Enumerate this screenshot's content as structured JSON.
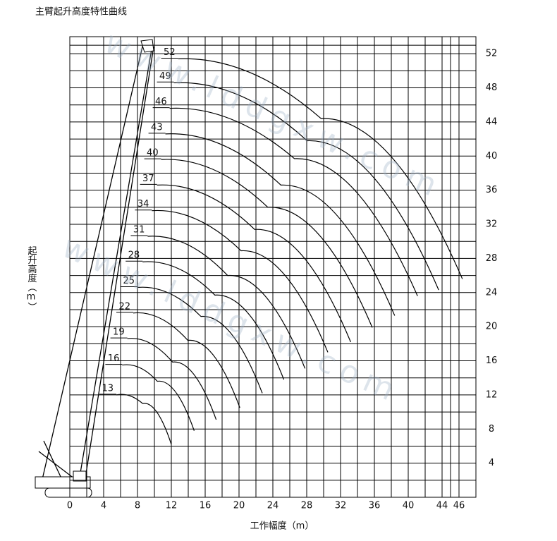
{
  "chart_data": {
    "type": "line",
    "title": "主臂起升高度特性曲线",
    "x_label": "工作幅度（m）",
    "y_label": "起升高度（m）",
    "watermark": "www.lddgxw.com",
    "xlim": [
      0,
      48
    ],
    "ylim": [
      0,
      54
    ],
    "xticks": [
      0,
      4,
      8,
      12,
      16,
      20,
      24,
      28,
      32,
      36,
      40,
      44,
      46
    ],
    "yticks": [
      4,
      8,
      12,
      16,
      20,
      24,
      28,
      32,
      36,
      40,
      44,
      48,
      52
    ],
    "grid": true,
    "series": [
      {
        "name": "13",
        "color": "#000000",
        "x": [
          5.5,
          8.6,
          12.0
        ],
        "values": [
          12.0,
          11.0,
          6.2
        ]
      },
      {
        "name": "16",
        "color": "#000000",
        "x": [
          6.2,
          10.35,
          14.7
        ],
        "values": [
          15.5,
          13.6,
          7.8
        ]
      },
      {
        "name": "19",
        "color": "#000000",
        "x": [
          6.8,
          12.15,
          17.3
        ],
        "values": [
          18.6,
          15.85,
          9.1
        ]
      },
      {
        "name": "22",
        "color": "#000000",
        "x": [
          7.5,
          13.95,
          20.1
        ],
        "values": [
          21.6,
          18.4,
          10.5
        ]
      },
      {
        "name": "25",
        "color": "#000000",
        "x": [
          8.0,
          15.5,
          22.75
        ],
        "values": [
          24.6,
          21.2,
          12.2
        ]
      },
      {
        "name": "28",
        "color": "#000000",
        "x": [
          8.6,
          17.15,
          25.3
        ],
        "values": [
          27.6,
          23.7,
          13.8
        ]
      },
      {
        "name": "31",
        "color": "#000000",
        "x": [
          9.2,
          18.65,
          27.8
        ],
        "values": [
          30.6,
          26.0,
          15.1
        ]
      },
      {
        "name": "34",
        "color": "#000000",
        "x": [
          9.7,
          20.25,
          30.5
        ],
        "values": [
          33.6,
          28.9,
          17.0
        ]
      },
      {
        "name": "37",
        "color": "#000000",
        "x": [
          10.3,
          21.85,
          33.2
        ],
        "values": [
          36.6,
          31.4,
          18.2
        ]
      },
      {
        "name": "40",
        "color": "#000000",
        "x": [
          10.8,
          23.4,
          35.75
        ],
        "values": [
          39.6,
          34.0,
          19.9
        ]
      },
      {
        "name": "43",
        "color": "#000000",
        "x": [
          11.3,
          24.95,
          38.4
        ],
        "values": [
          42.6,
          36.6,
          21.3
        ]
      },
      {
        "name": "46",
        "color": "#000000",
        "x": [
          11.8,
          26.55,
          41.1
        ],
        "values": [
          45.6,
          39.7,
          23.6
        ]
      },
      {
        "name": "49",
        "color": "#000000",
        "x": [
          12.3,
          28.05,
          43.6
        ],
        "values": [
          48.6,
          41.8,
          24.3
        ]
      },
      {
        "name": "52",
        "color": "#000000",
        "x": [
          12.8,
          29.7,
          46.4
        ],
        "values": [
          51.4,
          44.4,
          25.6
        ]
      }
    ]
  }
}
